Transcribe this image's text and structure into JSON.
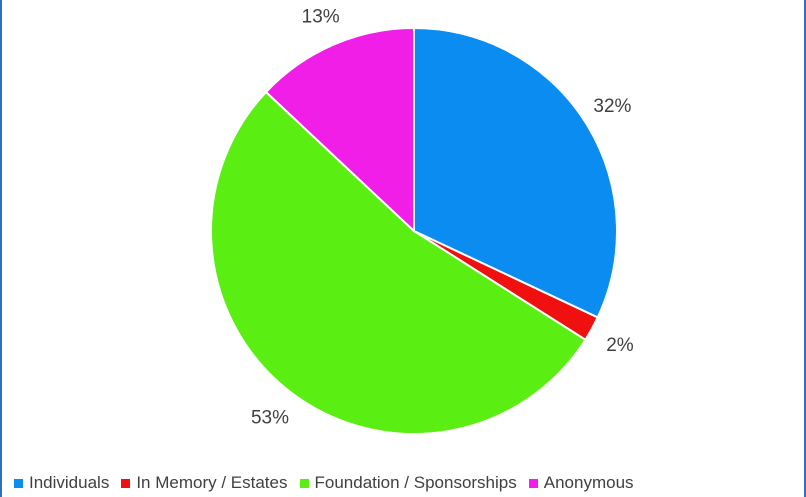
{
  "chart_data": {
    "type": "pie",
    "title": "",
    "categories": [
      "Individuals",
      "In Memory / Estates",
      "Foundation / Sponsorships",
      "Anonymous"
    ],
    "values": [
      32,
      2,
      53,
      13
    ],
    "value_labels": [
      "32%",
      "2%",
      "53%",
      "13%"
    ],
    "colors": [
      "#0a8cf0",
      "#f01010",
      "#5aee12",
      "#f01ee6"
    ],
    "legend_position": "bottom",
    "slice_border_color": "#ffffff",
    "start_angle": "12 o'clock",
    "direction": "clockwise"
  },
  "legend": {
    "items": [
      {
        "label": "Individuals",
        "color": "#0a8cf0"
      },
      {
        "label": "In Memory / Estates",
        "color": "#f01010"
      },
      {
        "label": "Foundation / Sponsorships",
        "color": "#5aee12"
      },
      {
        "label": "Anonymous",
        "color": "#f01ee6"
      }
    ]
  }
}
